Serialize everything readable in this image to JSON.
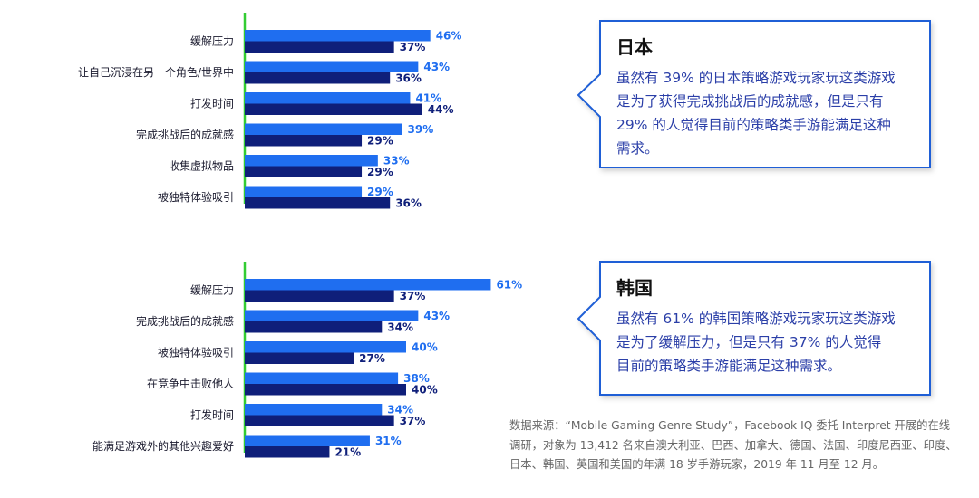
{
  "colors": {
    "series_a": "#1f6ef0",
    "series_b": "#0f1f7a",
    "axis": "#33cc33",
    "callout_border": "#1f5fd6",
    "callout_text": "#2b3fa8"
  },
  "chart_data": [
    {
      "type": "bar",
      "orientation": "horizontal",
      "categories": [
        "缓解压力",
        "让自己沉浸在另一个角色/世界中",
        "打发时间",
        "完成挑战后的成就感",
        "收集虚拟物品",
        "被独特体验吸引"
      ],
      "series": [
        {
          "values": [
            46,
            43,
            41,
            39,
            33,
            29
          ],
          "labels": [
            "46%",
            "43%",
            "41%",
            "39%",
            "33%",
            "29%"
          ]
        },
        {
          "values": [
            37,
            36,
            44,
            29,
            29,
            36
          ],
          "labels": [
            "37%",
            "36%",
            "44%",
            "29%",
            "29%",
            "36%"
          ]
        }
      ],
      "xlim": [
        0,
        100
      ],
      "grid": false,
      "legend": "none"
    },
    {
      "type": "bar",
      "orientation": "horizontal",
      "categories": [
        "缓解压力",
        "完成挑战后的成就感",
        "被独特体验吸引",
        "在竞争中击败他人",
        "打发时间",
        "能满足游戏外的其他兴趣爱好"
      ],
      "series": [
        {
          "values": [
            61,
            43,
            40,
            38,
            34,
            31
          ],
          "labels": [
            "61%",
            "43%",
            "40%",
            "38%",
            "34%",
            "31%"
          ]
        },
        {
          "values": [
            37,
            34,
            27,
            40,
            37,
            21
          ],
          "labels": [
            "37%",
            "34%",
            "27%",
            "40%",
            "37%",
            "21%"
          ]
        }
      ],
      "xlim": [
        0,
        100
      ],
      "grid": false,
      "legend": "none"
    }
  ],
  "callouts": {
    "japan": {
      "title": "日本",
      "body": "虽然有 39% 的日本策略游戏玩家玩这类游戏\n是为了获得完成挑战后的成就感，但是只有\n29% 的人觉得目前的策略类手游能满足这种\n需求。"
    },
    "korea": {
      "title": "韩国",
      "body": "虽然有 61% 的韩国策略游戏玩家玩这类游戏\n是为了缓解压力，但是只有 37% 的人觉得\n目前的策略类手游能满足这种需求。"
    }
  },
  "source_note": "数据来源：“Mobile Gaming Genre Study”，Facebook IQ 委托 Interpret 开展的在线\n调研，对象为 13,412 名来自澳大利亚、巴西、加拿大、德国、法国、印度尼西亚、印度、\n日本、韩国、英国和美国的年满 18 岁手游玩家，2019 年 11 月至 12 月。"
}
